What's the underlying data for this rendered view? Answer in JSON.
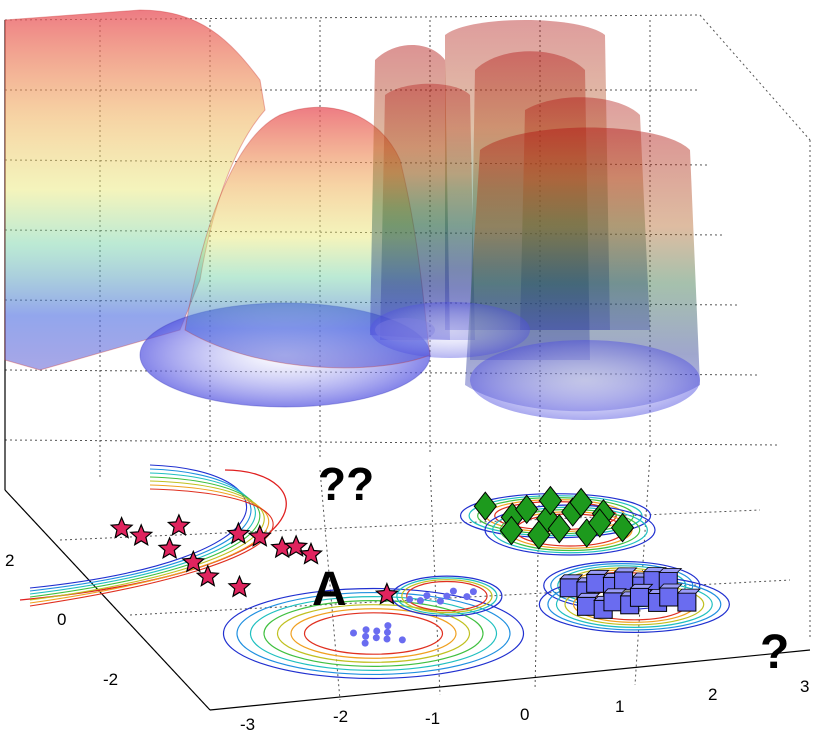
{
  "chart_data": {
    "type": "scatter",
    "title": "",
    "xlabel": "",
    "ylabel": "",
    "grid": true,
    "x_ticks": [
      "-3",
      "-2",
      "-1",
      "0",
      "1",
      "2",
      "3"
    ],
    "y_ticks": [
      "-2",
      "0",
      "2"
    ],
    "annotations": {
      "cluster_label": "A",
      "unknown_pair": "??",
      "unknown_single": "?"
    },
    "series": [
      {
        "marker": "star",
        "color": "#e0245e",
        "points": [
          [
            -3.35,
            3.1
          ],
          [
            -3.2,
            2.9
          ],
          [
            -3.0,
            2.55
          ],
          [
            -2.85,
            2.2
          ],
          [
            -2.8,
            1.85
          ],
          [
            -2.55,
            1.55
          ],
          [
            -2.75,
            3.05
          ],
          [
            -2.2,
            2.75
          ],
          [
            -2.0,
            2.65
          ],
          [
            -1.85,
            2.35
          ],
          [
            -1.7,
            2.35
          ],
          [
            -1.6,
            2.15
          ],
          [
            -1.1,
            1.1
          ]
        ]
      },
      {
        "marker": "dot",
        "color": "#6a6cf0",
        "points": [
          [
            -1.7,
            0.3
          ],
          [
            -1.6,
            0.2
          ],
          [
            -1.55,
            0.35
          ],
          [
            -1.5,
            0.15
          ],
          [
            -1.45,
            0.3
          ],
          [
            -1.4,
            0.1
          ],
          [
            -1.35,
            0.25
          ],
          [
            -1.3,
            0.4
          ],
          [
            -1.65,
            0.05
          ],
          [
            -1.25,
            0.05
          ],
          [
            -0.9,
            0.95
          ],
          [
            -0.8,
            0.9
          ],
          [
            -0.7,
            1.0
          ],
          [
            -0.6,
            0.85
          ],
          [
            -0.5,
            0.95
          ],
          [
            -0.4,
            1.05
          ],
          [
            -0.3,
            0.9
          ],
          [
            -0.2,
            1.0
          ]
        ]
      },
      {
        "marker": "diamond",
        "color": "#1d9a1d",
        "points": [
          [
            0.5,
            2.9
          ],
          [
            0.7,
            2.6
          ],
          [
            0.9,
            2.75
          ],
          [
            1.05,
            2.5
          ],
          [
            1.2,
            2.9
          ],
          [
            1.35,
            2.6
          ],
          [
            1.5,
            2.8
          ],
          [
            1.65,
            2.5
          ],
          [
            0.6,
            2.3
          ],
          [
            0.85,
            2.15
          ],
          [
            1.1,
            2.25
          ],
          [
            1.35,
            2.1
          ],
          [
            1.55,
            2.3
          ],
          [
            1.75,
            2.15
          ]
        ]
      },
      {
        "marker": "cube",
        "color": "#6a6cf0",
        "points": [
          [
            0.8,
            0.9
          ],
          [
            0.95,
            0.8
          ],
          [
            1.1,
            0.95
          ],
          [
            1.25,
            0.85
          ],
          [
            1.4,
            0.95
          ],
          [
            1.55,
            0.8
          ],
          [
            1.7,
            0.9
          ],
          [
            1.85,
            0.85
          ],
          [
            0.85,
            0.45
          ],
          [
            1.0,
            0.35
          ],
          [
            1.15,
            0.5
          ],
          [
            1.3,
            0.4
          ],
          [
            1.45,
            0.55
          ],
          [
            1.6,
            0.4
          ],
          [
            1.75,
            0.5
          ],
          [
            1.9,
            0.35
          ]
        ]
      }
    ],
    "surface": {
      "description_free": true,
      "peaks": 6
    }
  }
}
